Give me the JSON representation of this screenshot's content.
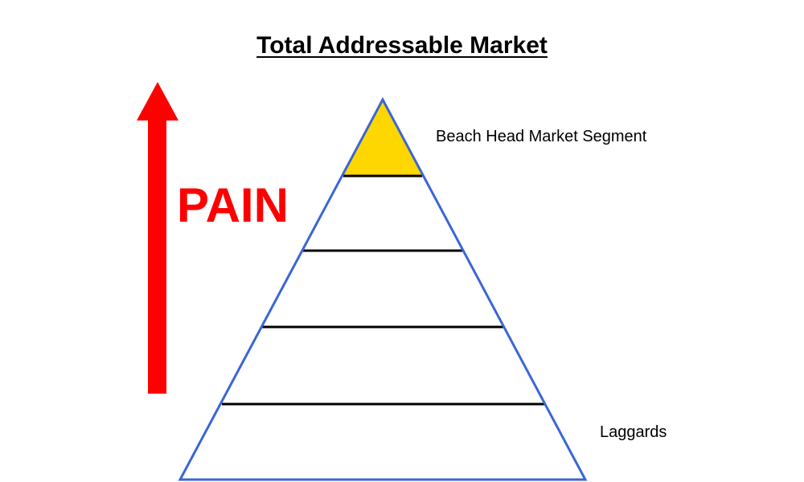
{
  "title": "Total Addressable Market",
  "pain_label": "PAIN",
  "segment_labels": {
    "top": "Beach Head Market Segment",
    "bottom": "Laggards"
  },
  "pyramid": {
    "tiers": 5,
    "highlighted_tier": "top"
  },
  "colors": {
    "arrow": "#ff0000",
    "pain_text": "#ff0000",
    "pyramid_outline": "#3a66d6",
    "tier_divider": "#000000",
    "top_tier_fill": "#ffd700"
  }
}
